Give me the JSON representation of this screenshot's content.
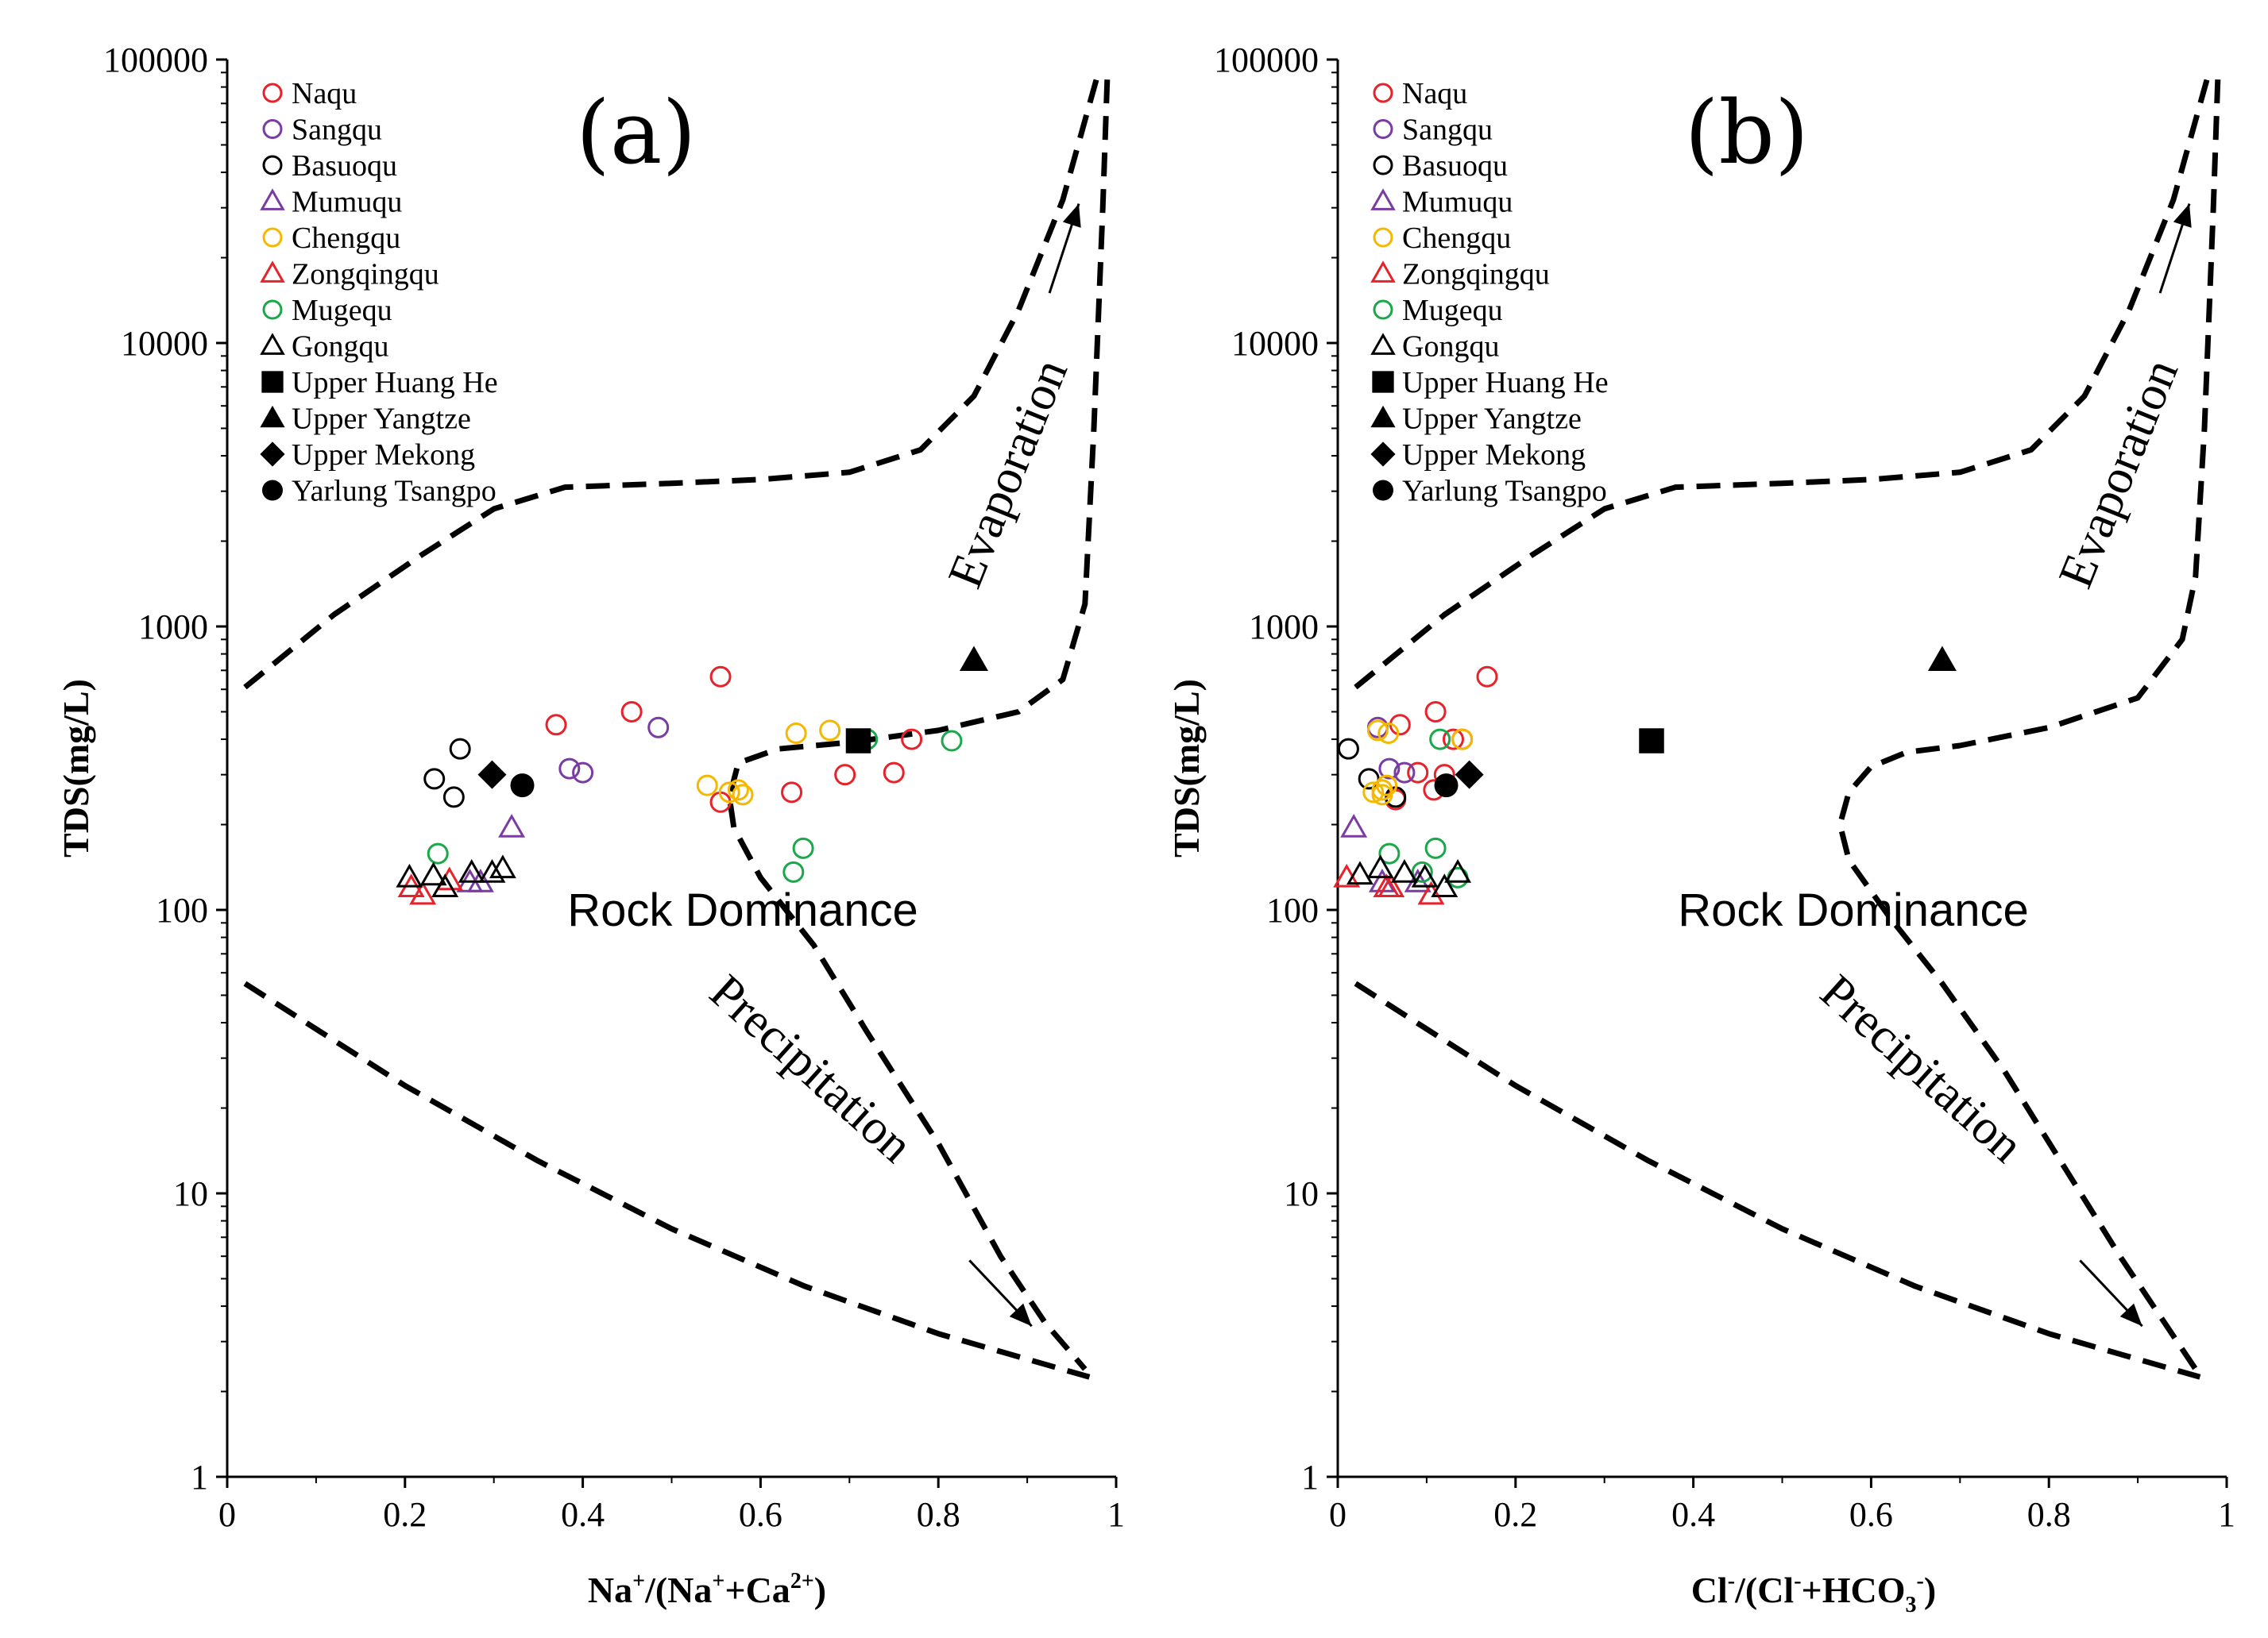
{
  "chart_data": [
    {
      "type": "scatter",
      "panel_label": "(a)",
      "xlabel_parts": [
        "Na",
        "+",
        "/(Na",
        "+",
        "+Ca",
        "2+",
        ")"
      ],
      "ylabel": "TDS(mg/L)",
      "xlim": [
        0,
        1
      ],
      "ylim": [
        1,
        100000
      ],
      "yscale": "log",
      "x_ticks": [
        "0",
        "0.2",
        "0.4",
        "0.6",
        "0.8",
        "1"
      ],
      "y_ticks": [
        "1",
        "10",
        "100",
        "1000",
        "10000",
        "100000"
      ],
      "regions": {
        "rock": "Rock Dominance",
        "evaporation": "Evaporation",
        "precipitation": "Precipitation"
      },
      "legend": [
        {
          "name": "Naqu",
          "marker": "circle",
          "color": "#e8222a",
          "filled": false
        },
        {
          "name": "Sangqu",
          "marker": "circle",
          "color": "#7a3ca3",
          "filled": false
        },
        {
          "name": "Basuoqu",
          "marker": "circle",
          "color": "#000000",
          "filled": false
        },
        {
          "name": "Mumuqu",
          "marker": "triangle",
          "color": "#7a3ca3",
          "filled": false
        },
        {
          "name": "Chengqu",
          "marker": "circle",
          "color": "#f5b800",
          "filled": false
        },
        {
          "name": "Zongqingqu",
          "marker": "triangle",
          "color": "#e8222a",
          "filled": false
        },
        {
          "name": "Mugequ",
          "marker": "circle",
          "color": "#1aa84a",
          "filled": false
        },
        {
          "name": "Gongqu",
          "marker": "triangle",
          "color": "#000000",
          "filled": false
        },
        {
          "name": "Upper Huang He",
          "marker": "square",
          "color": "#000000",
          "filled": true
        },
        {
          "name": "Upper Yangtze",
          "marker": "triangle",
          "color": "#000000",
          "filled": true
        },
        {
          "name": "Upper Mekong",
          "marker": "diamond",
          "color": "#000000",
          "filled": true
        },
        {
          "name": "Yarlung Tsangpo",
          "marker": "circle",
          "color": "#000000",
          "filled": true
        }
      ],
      "series": [
        {
          "name": "Naqu",
          "points": [
            [
              0.37,
              450
            ],
            [
              0.455,
              500
            ],
            [
              0.555,
              665
            ],
            [
              0.555,
              240
            ],
            [
              0.635,
              260
            ],
            [
              0.695,
              300
            ],
            [
              0.75,
              305
            ],
            [
              0.77,
              400
            ]
          ]
        },
        {
          "name": "Sangqu",
          "points": [
            [
              0.385,
              315
            ],
            [
              0.4,
              305
            ],
            [
              0.485,
              440
            ]
          ]
        },
        {
          "name": "Basuoqu",
          "points": [
            [
              0.233,
              290
            ],
            [
              0.255,
              250
            ],
            [
              0.262,
              370
            ]
          ]
        },
        {
          "name": "Mumuqu",
          "points": [
            [
              0.273,
              125
            ],
            [
              0.285,
              125
            ],
            [
              0.32,
              195
            ]
          ]
        },
        {
          "name": "Chengqu",
          "points": [
            [
              0.54,
              275
            ],
            [
              0.565,
              260
            ],
            [
              0.575,
              265
            ],
            [
              0.58,
              255
            ],
            [
              0.64,
              420
            ],
            [
              0.678,
              430
            ],
            [
              0.71,
              400
            ]
          ]
        },
        {
          "name": "Zongqingqu",
          "points": [
            [
              0.207,
              120
            ],
            [
              0.22,
              113
            ],
            [
              0.25,
              127
            ]
          ]
        },
        {
          "name": "Mugequ",
          "points": [
            [
              0.237,
              158
            ],
            [
              0.637,
              136
            ],
            [
              0.648,
              165
            ],
            [
              0.72,
              400
            ],
            [
              0.815,
              395
            ]
          ]
        },
        {
          "name": "Gongqu",
          "points": [
            [
              0.205,
              130
            ],
            [
              0.232,
              132
            ],
            [
              0.245,
              120
            ],
            [
              0.275,
              135
            ],
            [
              0.298,
              135
            ],
            [
              0.31,
              140
            ]
          ]
        },
        {
          "name": "Upper Huang He",
          "points": [
            [
              0.71,
              395
            ]
          ]
        },
        {
          "name": "Upper Yangtze",
          "points": [
            [
              0.84,
              760
            ]
          ]
        },
        {
          "name": "Upper Mekong",
          "points": [
            [
              0.298,
              300
            ]
          ]
        },
        {
          "name": "Yarlung Tsangpo",
          "points": [
            [
              0.332,
              275
            ]
          ]
        }
      ],
      "boundaries": [
        {
          "name": "upper",
          "points": [
            [
              0.02,
              610
            ],
            [
              0.12,
              1100
            ],
            [
              0.22,
              1800
            ],
            [
              0.3,
              2600
            ],
            [
              0.38,
              3100
            ],
            [
              0.5,
              3200
            ],
            [
              0.6,
              3300
            ],
            [
              0.7,
              3500
            ],
            [
              0.78,
              4200
            ],
            [
              0.84,
              6500
            ],
            [
              0.89,
              13000
            ],
            [
              0.94,
              32000
            ],
            [
              0.98,
              90000
            ]
          ]
        },
        {
          "name": "inner",
          "points": [
            [
              0.99,
              85000
            ],
            [
              0.985,
              30000
            ],
            [
              0.975,
              5000
            ],
            [
              0.965,
              1200
            ],
            [
              0.94,
              650
            ],
            [
              0.89,
              500
            ],
            [
              0.8,
              430
            ],
            [
              0.7,
              390
            ],
            [
              0.62,
              370
            ],
            [
              0.575,
              330
            ],
            [
              0.565,
              250
            ],
            [
              0.57,
              195
            ],
            [
              0.6,
              130
            ],
            [
              0.66,
              75
            ],
            [
              0.72,
              37
            ],
            [
              0.8,
              15
            ],
            [
              0.87,
              6
            ],
            [
              0.92,
              3.5
            ],
            [
              0.965,
              2.4
            ]
          ]
        },
        {
          "name": "lower",
          "points": [
            [
              0.02,
              55
            ],
            [
              0.1,
              38
            ],
            [
              0.2,
              24
            ],
            [
              0.35,
              13
            ],
            [
              0.5,
              7.5
            ],
            [
              0.65,
              4.7
            ],
            [
              0.8,
              3.2
            ],
            [
              0.9,
              2.6
            ],
            [
              0.97,
              2.25
            ]
          ]
        }
      ],
      "arrows": [
        {
          "name": "evaporation-arrow",
          "from": [
            0.925,
            15000
          ],
          "to": [
            0.958,
            31000
          ]
        },
        {
          "name": "precipitation-arrow",
          "from": [
            0.835,
            5.8
          ],
          "to": [
            0.905,
            3.4
          ]
        }
      ]
    },
    {
      "type": "scatter",
      "panel_label": "(b)",
      "xlabel_parts": [
        "Cl",
        "-",
        "/(Cl",
        "-",
        "+HCO",
        "3",
        "-",
        ")"
      ],
      "ylabel": "TDS(mg/L)",
      "xlim": [
        0,
        1
      ],
      "ylim": [
        1,
        100000
      ],
      "yscale": "log",
      "x_ticks": [
        "0",
        "0.2",
        "0.4",
        "0.6",
        "0.8",
        "1"
      ],
      "y_ticks": [
        "1",
        "10",
        "100",
        "1000",
        "10000",
        "100000"
      ],
      "regions": {
        "rock": "Rock Dominance",
        "evaporation": "Evaporation",
        "precipitation": "Precipitation"
      },
      "legend": [
        {
          "name": "Naqu",
          "marker": "circle",
          "color": "#e8222a",
          "filled": false
        },
        {
          "name": "Sangqu",
          "marker": "circle",
          "color": "#7a3ca3",
          "filled": false
        },
        {
          "name": "Basuoqu",
          "marker": "circle",
          "color": "#000000",
          "filled": false
        },
        {
          "name": "Mumuqu",
          "marker": "triangle",
          "color": "#7a3ca3",
          "filled": false
        },
        {
          "name": "Chengqu",
          "marker": "circle",
          "color": "#f5b800",
          "filled": false
        },
        {
          "name": "Zongqingqu",
          "marker": "triangle",
          "color": "#e8222a",
          "filled": false
        },
        {
          "name": "Mugequ",
          "marker": "circle",
          "color": "#1aa84a",
          "filled": false
        },
        {
          "name": "Gongqu",
          "marker": "triangle",
          "color": "#000000",
          "filled": false
        },
        {
          "name": "Upper Huang He",
          "marker": "square",
          "color": "#000000",
          "filled": true
        },
        {
          "name": "Upper Yangtze",
          "marker": "triangle",
          "color": "#000000",
          "filled": true
        },
        {
          "name": "Upper Mekong",
          "marker": "diamond",
          "color": "#000000",
          "filled": true
        },
        {
          "name": "Yarlung Tsangpo",
          "marker": "circle",
          "color": "#000000",
          "filled": true
        }
      ],
      "series": [
        {
          "name": "Naqu",
          "points": [
            [
              0.07,
              450
            ],
            [
              0.11,
              500
            ],
            [
              0.13,
              400
            ],
            [
              0.14,
              400
            ],
            [
              0.168,
              665
            ],
            [
              0.12,
              300
            ],
            [
              0.108,
              265
            ],
            [
              0.09,
              305
            ],
            [
              0.065,
              245
            ]
          ]
        },
        {
          "name": "Sangqu",
          "points": [
            [
              0.045,
              440
            ],
            [
              0.058,
              315
            ],
            [
              0.075,
              305
            ]
          ]
        },
        {
          "name": "Basuoqu",
          "points": [
            [
              0.012,
              370
            ],
            [
              0.035,
              290
            ],
            [
              0.065,
              250
            ]
          ]
        },
        {
          "name": "Mumuqu",
          "points": [
            [
              0.018,
              195
            ],
            [
              0.05,
              125
            ],
            [
              0.09,
              125
            ]
          ]
        },
        {
          "name": "Chengqu",
          "points": [
            [
              0.04,
              260
            ],
            [
              0.05,
              265
            ],
            [
              0.05,
              255
            ],
            [
              0.055,
              275
            ],
            [
              0.045,
              430
            ],
            [
              0.057,
              420
            ],
            [
              0.14,
              400
            ]
          ]
        },
        {
          "name": "Zongqingqu",
          "points": [
            [
              0.01,
              130
            ],
            [
              0.055,
              120
            ],
            [
              0.06,
              120
            ],
            [
              0.105,
              113
            ]
          ]
        },
        {
          "name": "Mugequ",
          "points": [
            [
              0.058,
              158
            ],
            [
              0.095,
              136
            ],
            [
              0.11,
              165
            ],
            [
              0.115,
              400
            ],
            [
              0.135,
              130
            ]
          ]
        },
        {
          "name": "Gongqu",
          "points": [
            [
              0.025,
              133
            ],
            [
              0.048,
              140
            ],
            [
              0.075,
              135
            ],
            [
              0.098,
              130
            ],
            [
              0.12,
              120
            ],
            [
              0.135,
              135
            ]
          ]
        },
        {
          "name": "Upper Huang He",
          "points": [
            [
              0.353,
              395
            ]
          ]
        },
        {
          "name": "Upper Yangtze",
          "points": [
            [
              0.68,
              760
            ]
          ]
        },
        {
          "name": "Upper Mekong",
          "points": [
            [
              0.148,
              300
            ]
          ]
        },
        {
          "name": "Yarlung Tsangpo",
          "points": [
            [
              0.122,
              275
            ]
          ]
        }
      ],
      "boundaries": [
        {
          "name": "upper",
          "points": [
            [
              0.02,
              610
            ],
            [
              0.12,
              1100
            ],
            [
              0.22,
              1800
            ],
            [
              0.3,
              2600
            ],
            [
              0.38,
              3100
            ],
            [
              0.5,
              3200
            ],
            [
              0.6,
              3300
            ],
            [
              0.7,
              3500
            ],
            [
              0.78,
              4200
            ],
            [
              0.84,
              6500
            ],
            [
              0.89,
              13000
            ],
            [
              0.94,
              32000
            ],
            [
              0.98,
              90000
            ]
          ]
        },
        {
          "name": "inner",
          "points": [
            [
              0.99,
              85000
            ],
            [
              0.985,
              30000
            ],
            [
              0.975,
              5000
            ],
            [
              0.965,
              1500
            ],
            [
              0.95,
              900
            ],
            [
              0.9,
              560
            ],
            [
              0.8,
              440
            ],
            [
              0.7,
              380
            ],
            [
              0.64,
              360
            ],
            [
              0.6,
              320
            ],
            [
              0.575,
              260
            ],
            [
              0.565,
              200
            ],
            [
              0.575,
              150
            ],
            [
              0.62,
              95
            ],
            [
              0.68,
              55
            ],
            [
              0.75,
              27
            ],
            [
              0.82,
              12
            ],
            [
              0.88,
              6
            ],
            [
              0.93,
              3.5
            ],
            [
              0.965,
              2.4
            ]
          ]
        },
        {
          "name": "lower",
          "points": [
            [
              0.02,
              55
            ],
            [
              0.1,
              38
            ],
            [
              0.2,
              24
            ],
            [
              0.35,
              13
            ],
            [
              0.5,
              7.5
            ],
            [
              0.65,
              4.7
            ],
            [
              0.8,
              3.2
            ],
            [
              0.9,
              2.6
            ],
            [
              0.97,
              2.25
            ]
          ]
        }
      ],
      "arrows": [
        {
          "name": "evaporation-arrow",
          "from": [
            0.925,
            15000
          ],
          "to": [
            0.958,
            31000
          ]
        },
        {
          "name": "precipitation-arrow",
          "from": [
            0.835,
            5.8
          ],
          "to": [
            0.905,
            3.4
          ]
        }
      ]
    }
  ]
}
